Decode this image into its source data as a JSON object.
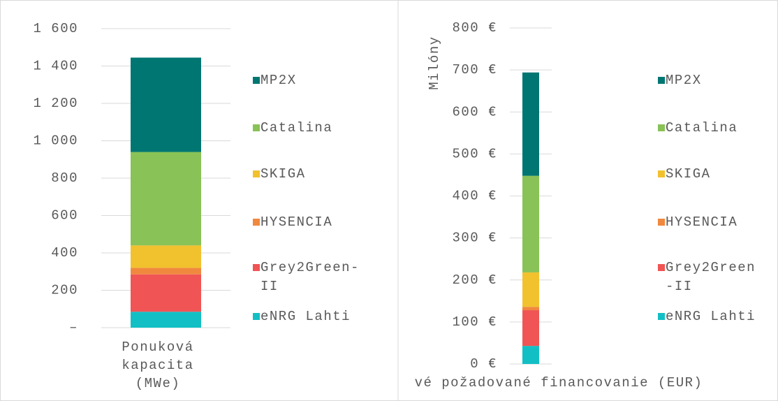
{
  "chart_data": [
    {
      "type": "bar",
      "categories": [
        "Ponuková kapacita (MWe)"
      ],
      "series": [
        {
          "name": "eNRG Lahti",
          "color": "#12bfc4",
          "values": [
            85
          ]
        },
        {
          "name": "Grey2Green-II",
          "color": "#f05454",
          "values": [
            200
          ]
        },
        {
          "name": "HYSENCIA",
          "color": "#f0883e",
          "values": [
            35
          ]
        },
        {
          "name": "SKIGA",
          "color": "#f2c12e",
          "values": [
            120
          ]
        },
        {
          "name": "Catalina",
          "color": "#89c257",
          "values": [
            500
          ]
        },
        {
          "name": "MP2X",
          "color": "#007672",
          "values": [
            505
          ]
        }
      ],
      "ylim": [
        0,
        1600
      ],
      "yticks": [
        {
          "value": 0,
          "label": "–"
        },
        200,
        400,
        600,
        800,
        {
          "value": 1000,
          "label": "1 000"
        },
        {
          "value": 1200,
          "label": "1 200"
        },
        {
          "value": 1400,
          "label": "1 400"
        },
        {
          "value": 1600,
          "label": "1 600"
        }
      ],
      "grid": true,
      "legend": "right"
    },
    {
      "type": "bar",
      "y_title": "Milóny",
      "categories": [
        "vé požadované financovanie (EUR)"
      ],
      "series": [
        {
          "name": "eNRG Lahti",
          "color": "#12bfc4",
          "values": [
            43
          ]
        },
        {
          "name": "Grey2Green-II",
          "color": "#f05454",
          "values": [
            85
          ]
        },
        {
          "name": "HYSENCIA",
          "color": "#f0883e",
          "values": [
            8
          ]
        },
        {
          "name": "SKIGA",
          "color": "#f2c12e",
          "values": [
            82
          ]
        },
        {
          "name": "Catalina",
          "color": "#89c257",
          "values": [
            230
          ]
        },
        {
          "name": "MP2X",
          "color": "#007672",
          "values": [
            246
          ]
        }
      ],
      "ylim": [
        0,
        800
      ],
      "yticks": [
        {
          "value": 0,
          "label": "0 €"
        },
        {
          "value": 100,
          "label": "100 €"
        },
        {
          "value": 200,
          "label": "200 €"
        },
        {
          "value": 300,
          "label": "300 €"
        },
        {
          "value": 400,
          "label": "400 €"
        },
        {
          "value": 500,
          "label": "500 €"
        },
        {
          "value": 600,
          "label": "600 €"
        },
        {
          "value": 700,
          "label": "700 €"
        },
        {
          "value": 800,
          "label": "800 €"
        }
      ],
      "grid": true,
      "legend": "right"
    }
  ]
}
